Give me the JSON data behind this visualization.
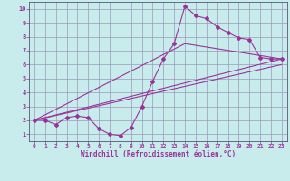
{
  "xlabel": "Windchill (Refroidissement éolien,°C)",
  "background_color": "#c8ecec",
  "grid_color": "#9999bb",
  "line_color": "#993399",
  "spine_color": "#555577",
  "xlim": [
    -0.5,
    23.5
  ],
  "ylim": [
    0.5,
    10.5
  ],
  "xticks": [
    0,
    1,
    2,
    3,
    4,
    5,
    6,
    7,
    8,
    9,
    10,
    11,
    12,
    13,
    14,
    15,
    16,
    17,
    18,
    19,
    20,
    21,
    22,
    23
  ],
  "yticks": [
    1,
    2,
    3,
    4,
    5,
    6,
    7,
    8,
    9,
    10
  ],
  "line1_x": [
    0,
    1,
    2,
    3,
    4,
    5,
    6,
    7,
    8,
    9,
    10,
    11,
    12,
    13,
    14,
    15,
    16,
    17,
    18,
    19,
    20,
    21,
    22,
    23
  ],
  "line1_y": [
    2.0,
    2.0,
    1.7,
    2.2,
    2.3,
    2.2,
    1.4,
    1.0,
    0.9,
    1.5,
    3.0,
    4.8,
    6.4,
    7.5,
    10.2,
    9.5,
    9.3,
    8.7,
    8.3,
    7.9,
    7.8,
    6.5,
    6.4,
    6.4
  ],
  "line2_x": [
    0,
    23
  ],
  "line2_y": [
    2.0,
    6.4
  ],
  "line3_x": [
    0,
    23
  ],
  "line3_y": [
    2.0,
    6.0
  ],
  "line4_x": [
    0,
    14,
    23
  ],
  "line4_y": [
    2.0,
    7.5,
    6.4
  ]
}
